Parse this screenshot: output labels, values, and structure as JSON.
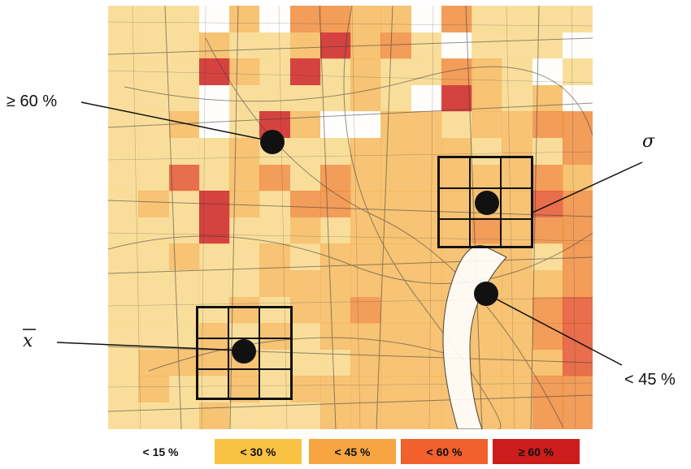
{
  "callouts": {
    "top_left": "≥ 60 %",
    "sigma": "σ",
    "xbar": "x",
    "bottom_right": "< 45 %"
  },
  "legend": [
    {
      "label": "< 15 %",
      "color": "#ffffff"
    },
    {
      "label": "< 30 %",
      "color": "#f9c242"
    },
    {
      "label": "< 45 %",
      "color": "#f7a541"
    },
    {
      "label": "< 60 %",
      "color": "#f2602c"
    },
    {
      "label": "≥ 60 %",
      "color": "#cd1c1c"
    }
  ],
  "grid_colors": {
    "0": "#ffffff",
    "1": "#f9d98a",
    "2": "#f7b85c",
    "3": "#f08a3a",
    "4": "#e4502a",
    "5": "#cd1c1c"
  },
  "heat_rows": [
    "1110203322031111",
    "1112112523101110",
    "1115215121132101",
    "1110111121052120",
    "1120152002212233",
    "1111211122221213",
    "1141231322222232",
    "1215213322222243",
    "1115112122223233",
    "1121121222222213",
    "1111122222222223",
    "1111212232222234",
    "1112121222222234",
    "1222211122222224",
    "1211212222222233",
    "1112111222222233"
  ]
}
